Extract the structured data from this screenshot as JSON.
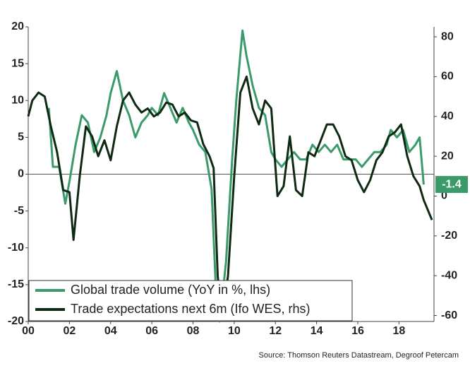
{
  "chart_data": {
    "type": "line",
    "source": "Source: Thomson Reuters Datastream, Degroof Petercam",
    "xlim": [
      2000,
      2019.7
    ],
    "xticks": [
      {
        "value": 2000,
        "label": "00"
      },
      {
        "value": 2002,
        "label": "02"
      },
      {
        "value": 2004,
        "label": "04"
      },
      {
        "value": 2006,
        "label": "06"
      },
      {
        "value": 2008,
        "label": "08"
      },
      {
        "value": 2010,
        "label": "10"
      },
      {
        "value": 2012,
        "label": "12"
      },
      {
        "value": 2014,
        "label": "14"
      },
      {
        "value": 2016,
        "label": "16"
      },
      {
        "value": 2018,
        "label": "18"
      }
    ],
    "ylim": [
      -20,
      20
    ],
    "yticks": [
      -20,
      -15,
      -10,
      -5,
      0,
      5,
      10,
      15,
      20
    ],
    "y2lim": [
      -63,
      85
    ],
    "y2ticks": [
      -60,
      -40,
      -20,
      0,
      20,
      40,
      60,
      80
    ],
    "series": [
      {
        "name": "Global trade volume (YoY in %, lhs)",
        "color": "#3a9a6a",
        "x": [
          2001.0,
          2001.2,
          2001.5,
          2001.8,
          2002.0,
          2002.3,
          2002.6,
          2002.9,
          2003.2,
          2003.5,
          2003.8,
          2004.0,
          2004.3,
          2004.6,
          2004.9,
          2005.2,
          2005.5,
          2005.8,
          2006.0,
          2006.3,
          2006.6,
          2006.9,
          2007.2,
          2007.5,
          2007.8,
          2008.0,
          2008.3,
          2008.6,
          2008.9,
          2009.1,
          2009.3,
          2009.6,
          2009.9,
          2010.1,
          2010.4,
          2010.6,
          2010.9,
          2011.2,
          2011.5,
          2011.8,
          2012.0,
          2012.3,
          2012.6,
          2012.9,
          2013.2,
          2013.5,
          2013.8,
          2014.1,
          2014.4,
          2014.7,
          2015.0,
          2015.3,
          2015.6,
          2015.9,
          2016.2,
          2016.5,
          2016.8,
          2017.1,
          2017.4,
          2017.6,
          2017.9,
          2018.2,
          2018.5,
          2018.8,
          2019.0,
          2019.2
        ],
        "values": [
          9,
          1,
          1,
          -4,
          -1,
          4,
          8,
          7,
          3,
          5,
          8,
          11,
          14,
          10,
          8,
          5,
          7,
          8,
          9,
          8,
          11,
          9,
          7,
          9,
          7,
          6,
          4,
          3,
          -2,
          -15,
          -20,
          -12,
          2,
          10,
          19.5,
          16,
          12,
          9,
          8,
          3,
          2,
          1,
          2,
          3,
          2,
          2,
          4,
          3,
          4,
          3,
          4,
          2,
          2,
          2,
          1,
          2,
          3,
          3,
          4,
          6,
          5,
          6,
          3,
          4,
          5,
          -1.4
        ]
      },
      {
        "name": "Trade expectations next 6m (Ifo WES, rhs)",
        "color": "#0f2a12",
        "axis": "y2",
        "x": [
          2000.0,
          2000.2,
          2000.5,
          2000.8,
          2001.1,
          2001.4,
          2001.7,
          2002.0,
          2002.2,
          2002.5,
          2002.8,
          2003.1,
          2003.4,
          2003.7,
          2004.0,
          2004.3,
          2004.6,
          2004.9,
          2005.2,
          2005.5,
          2005.8,
          2006.1,
          2006.4,
          2006.7,
          2007.0,
          2007.3,
          2007.6,
          2007.9,
          2008.2,
          2008.5,
          2008.8,
          2009.0,
          2009.2,
          2009.4,
          2009.7,
          2010.0,
          2010.3,
          2010.6,
          2010.9,
          2011.2,
          2011.5,
          2011.8,
          2012.1,
          2012.4,
          2012.7,
          2013.0,
          2013.3,
          2013.6,
          2013.9,
          2014.2,
          2014.5,
          2014.8,
          2015.1,
          2015.4,
          2015.7,
          2016.0,
          2016.3,
          2016.6,
          2016.9,
          2017.2,
          2017.5,
          2017.8,
          2018.1,
          2018.4,
          2018.7,
          2019.0,
          2019.2,
          2019.6
        ],
        "values": [
          40,
          48,
          52,
          50,
          35,
          22,
          3,
          2,
          -22,
          10,
          35,
          30,
          20,
          28,
          18,
          35,
          48,
          52,
          46,
          42,
          44,
          40,
          42,
          47,
          46,
          40,
          42,
          38,
          37,
          26,
          20,
          14,
          -40,
          -62,
          -40,
          10,
          52,
          60,
          44,
          36,
          48,
          44,
          0,
          5,
          30,
          3,
          0,
          22,
          20,
          28,
          36,
          36,
          30,
          20,
          18,
          8,
          2,
          8,
          18,
          22,
          30,
          32,
          36,
          20,
          10,
          5,
          -2,
          -12
        ]
      }
    ]
  }
}
